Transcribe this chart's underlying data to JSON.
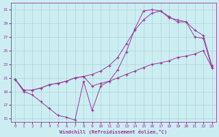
{
  "xlabel": "Windchill (Refroidissement éolien,°C)",
  "bg_color": "#cceef2",
  "grid_color": "#aad4d8",
  "line_color": "#993399",
  "xlim": [
    -0.5,
    23.5
  ],
  "ylim": [
    14.5,
    32
  ],
  "xticks": [
    0,
    1,
    2,
    3,
    4,
    5,
    6,
    7,
    8,
    9,
    10,
    11,
    12,
    13,
    14,
    15,
    16,
    17,
    18,
    19,
    20,
    21,
    22,
    23
  ],
  "yticks": [
    15,
    17,
    19,
    21,
    23,
    25,
    27,
    29,
    31
  ],
  "line1_x": [
    0,
    1,
    2,
    3,
    4,
    5,
    6,
    7,
    8,
    9,
    10,
    11,
    12,
    13,
    14,
    15,
    16,
    17,
    18,
    19,
    20,
    21,
    22,
    23
  ],
  "line1_y": [
    20.8,
    19.0,
    18.5,
    17.5,
    16.5,
    15.5,
    15.2,
    14.8,
    20.5,
    16.2,
    19.8,
    20.5,
    22.2,
    24.8,
    28.2,
    30.8,
    31.0,
    30.8,
    30.0,
    29.2,
    29.2,
    27.0,
    26.8,
    22.5
  ],
  "line2_x": [
    0,
    1,
    2,
    3,
    4,
    5,
    6,
    7,
    8,
    9,
    10,
    11,
    12,
    13,
    14,
    15,
    16,
    17,
    18,
    19,
    20,
    21,
    22,
    23
  ],
  "line2_y": [
    20.8,
    19.2,
    19.2,
    19.5,
    20.0,
    20.2,
    20.5,
    21.0,
    21.2,
    21.5,
    22.0,
    22.8,
    24.0,
    26.0,
    28.0,
    29.5,
    30.5,
    30.8,
    29.8,
    29.5,
    29.2,
    28.0,
    27.2,
    22.8
  ],
  "line3_x": [
    0,
    1,
    2,
    3,
    4,
    5,
    6,
    7,
    8,
    9,
    10,
    11,
    12,
    13,
    14,
    15,
    16,
    17,
    18,
    19,
    20,
    21,
    22,
    23
  ],
  "line3_y": [
    20.8,
    19.2,
    19.2,
    19.5,
    20.0,
    20.2,
    20.5,
    21.0,
    21.2,
    19.8,
    20.2,
    20.5,
    21.0,
    21.5,
    22.0,
    22.5,
    23.0,
    23.2,
    23.5,
    24.0,
    24.2,
    24.5,
    25.0,
    22.5
  ]
}
